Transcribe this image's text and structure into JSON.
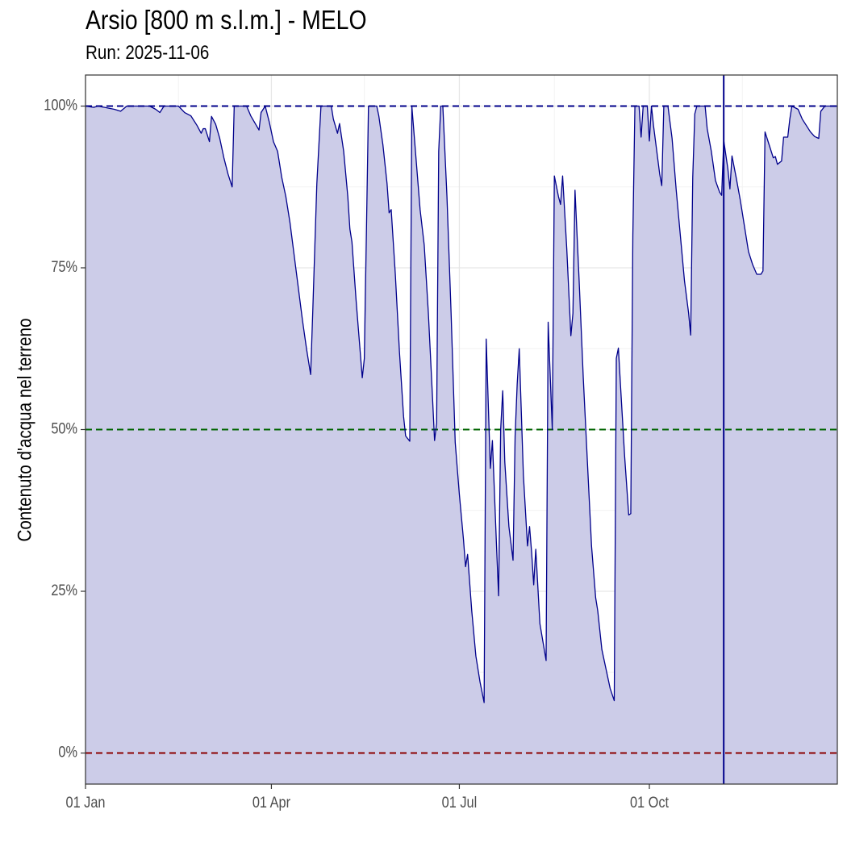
{
  "chart_data": {
    "type": "area",
    "title": "Arsio [800 m s.l.m.] - MELO",
    "subtitle": "Run: 2025-11-06",
    "xlabel": "",
    "ylabel": "Contenuto d'acqua nel terreno",
    "x_range": [
      "2025-01-01",
      "2025-12-31"
    ],
    "ylim": [
      -4.8,
      104.8
    ],
    "x_ticks": [
      {
        "date": "2025-01-01",
        "label": "01 Jan"
      },
      {
        "date": "2025-04-01",
        "label": "01 Apr"
      },
      {
        "date": "2025-07-01",
        "label": "01 Jul"
      },
      {
        "date": "2025-10-01",
        "label": "01 Oct"
      }
    ],
    "y_ticks": [
      {
        "value": 0,
        "label": "0%"
      },
      {
        "value": 25,
        "label": "25%"
      },
      {
        "value": 50,
        "label": "50%"
      },
      {
        "value": 75,
        "label": "75%"
      },
      {
        "value": 100,
        "label": "100%"
      }
    ],
    "grid": true,
    "reference_lines": [
      {
        "value": 100,
        "color": "#00008B",
        "style": "dashed"
      },
      {
        "value": 50,
        "color": "#006400",
        "style": "dashed"
      },
      {
        "value": 0,
        "color": "#8B0000",
        "style": "dashed"
      }
    ],
    "vertical_line": {
      "date": "2025-11-06",
      "color": "#00008B"
    },
    "colors": {
      "line": "#00008B",
      "fill": "#CCCCE8"
    },
    "series": [
      {
        "points": [
          [
            "2025-01-01",
            100
          ],
          [
            "2025-01-05",
            99.8
          ],
          [
            "2025-01-07",
            100
          ],
          [
            "2025-01-15",
            99.5
          ],
          [
            "2025-01-18",
            99.2
          ],
          [
            "2025-01-21",
            100
          ],
          [
            "2025-02-01",
            100
          ],
          [
            "2025-02-04",
            99.5
          ],
          [
            "2025-02-06",
            99
          ],
          [
            "2025-02-08",
            100
          ],
          [
            "2025-02-15",
            100
          ],
          [
            "2025-02-18",
            99
          ],
          [
            "2025-02-21",
            98.5
          ],
          [
            "2025-02-24",
            97
          ],
          [
            "2025-02-26",
            95.8
          ],
          [
            "2025-02-27",
            96.5
          ],
          [
            "2025-02-28",
            96.5
          ],
          [
            "2025-03-02",
            94.5
          ],
          [
            "2025-03-03",
            98.4
          ],
          [
            "2025-03-05",
            97.2
          ],
          [
            "2025-03-07",
            95
          ],
          [
            "2025-03-09",
            92
          ],
          [
            "2025-03-11",
            89.5
          ],
          [
            "2025-03-13",
            87.5
          ],
          [
            "2025-03-14",
            100
          ],
          [
            "2025-03-20",
            100
          ],
          [
            "2025-03-22",
            98.5
          ],
          [
            "2025-03-26",
            96.3
          ],
          [
            "2025-03-27",
            99
          ],
          [
            "2025-03-29",
            100
          ],
          [
            "2025-03-31",
            97.5
          ],
          [
            "2025-04-02",
            94.5
          ],
          [
            "2025-04-04",
            93
          ],
          [
            "2025-04-06",
            89
          ],
          [
            "2025-04-08",
            86
          ],
          [
            "2025-04-10",
            82
          ],
          [
            "2025-04-12",
            77
          ],
          [
            "2025-04-14",
            72
          ],
          [
            "2025-04-16",
            67
          ],
          [
            "2025-04-18",
            62.5
          ],
          [
            "2025-04-20",
            58.5
          ],
          [
            "2025-04-21",
            68
          ],
          [
            "2025-04-23",
            88
          ],
          [
            "2025-04-25",
            100
          ],
          [
            "2025-04-30",
            100
          ],
          [
            "2025-05-01",
            98
          ],
          [
            "2025-05-03",
            95.8
          ],
          [
            "2025-05-04",
            97.3
          ],
          [
            "2025-05-06",
            93
          ],
          [
            "2025-05-08",
            86
          ],
          [
            "2025-05-09",
            81
          ],
          [
            "2025-05-10",
            79
          ],
          [
            "2025-05-12",
            70
          ],
          [
            "2025-05-14",
            62
          ],
          [
            "2025-05-15",
            58
          ],
          [
            "2025-05-16",
            61
          ],
          [
            "2025-05-18",
            100
          ],
          [
            "2025-05-22",
            100
          ],
          [
            "2025-05-23",
            98.5
          ],
          [
            "2025-05-25",
            94
          ],
          [
            "2025-05-27",
            88
          ],
          [
            "2025-05-28",
            83.5
          ],
          [
            "2025-05-29",
            84
          ],
          [
            "2025-05-31",
            74
          ],
          [
            "2025-06-02",
            62
          ],
          [
            "2025-06-04",
            52
          ],
          [
            "2025-06-05",
            49
          ],
          [
            "2025-06-07",
            48.2
          ],
          [
            "2025-06-08",
            100
          ],
          [
            "2025-06-10",
            92
          ],
          [
            "2025-06-12",
            84
          ],
          [
            "2025-06-14",
            78.5
          ],
          [
            "2025-06-16",
            68
          ],
          [
            "2025-06-18",
            55
          ],
          [
            "2025-06-19",
            48.3
          ],
          [
            "2025-06-20",
            51
          ],
          [
            "2025-06-21",
            93
          ],
          [
            "2025-06-22",
            100
          ],
          [
            "2025-06-23",
            100
          ],
          [
            "2025-06-25",
            86
          ],
          [
            "2025-06-27",
            68
          ],
          [
            "2025-06-29",
            48
          ],
          [
            "2025-07-01",
            40
          ],
          [
            "2025-07-03",
            33
          ],
          [
            "2025-07-04",
            28.8
          ],
          [
            "2025-07-05",
            30.7
          ],
          [
            "2025-07-07",
            22
          ],
          [
            "2025-07-09",
            15
          ],
          [
            "2025-07-11",
            11
          ],
          [
            "2025-07-13",
            7.8
          ],
          [
            "2025-07-14",
            64
          ],
          [
            "2025-07-16",
            44
          ],
          [
            "2025-07-17",
            48.3
          ],
          [
            "2025-07-19",
            32
          ],
          [
            "2025-07-20",
            24.3
          ],
          [
            "2025-07-21",
            50
          ],
          [
            "2025-07-22",
            56
          ],
          [
            "2025-07-23",
            45
          ],
          [
            "2025-07-25",
            35
          ],
          [
            "2025-07-27",
            29.8
          ],
          [
            "2025-07-28",
            49
          ],
          [
            "2025-07-29",
            57
          ],
          [
            "2025-07-30",
            62.5
          ],
          [
            "2025-08-01",
            43
          ],
          [
            "2025-08-03",
            32
          ],
          [
            "2025-08-04",
            35
          ],
          [
            "2025-08-05",
            31
          ],
          [
            "2025-08-06",
            26
          ],
          [
            "2025-08-07",
            31.5
          ],
          [
            "2025-08-09",
            20
          ],
          [
            "2025-08-12",
            14.3
          ],
          [
            "2025-08-13",
            66.6
          ],
          [
            "2025-08-15",
            50
          ],
          [
            "2025-08-16",
            89.2
          ],
          [
            "2025-08-18",
            86
          ],
          [
            "2025-08-19",
            84.8
          ],
          [
            "2025-08-20",
            89.2
          ],
          [
            "2025-08-22",
            78
          ],
          [
            "2025-08-24",
            64.5
          ],
          [
            "2025-08-25",
            68
          ],
          [
            "2025-08-26",
            87
          ],
          [
            "2025-08-28",
            73
          ],
          [
            "2025-08-30",
            58
          ],
          [
            "2025-09-01",
            45
          ],
          [
            "2025-09-03",
            32
          ],
          [
            "2025-09-05",
            24
          ],
          [
            "2025-09-06",
            22
          ],
          [
            "2025-09-08",
            16
          ],
          [
            "2025-09-10",
            13
          ],
          [
            "2025-09-12",
            10
          ],
          [
            "2025-09-14",
            8.1
          ],
          [
            "2025-09-15",
            61
          ],
          [
            "2025-09-16",
            62.6
          ],
          [
            "2025-09-17",
            57
          ],
          [
            "2025-09-19",
            46
          ],
          [
            "2025-09-21",
            36.8
          ],
          [
            "2025-09-22",
            37
          ],
          [
            "2025-09-23",
            80
          ],
          [
            "2025-09-24",
            100
          ],
          [
            "2025-09-26",
            100
          ],
          [
            "2025-09-27",
            95.2
          ],
          [
            "2025-09-28",
            100
          ],
          [
            "2025-09-30",
            100
          ],
          [
            "2025-10-01",
            94.6
          ],
          [
            "2025-10-02",
            100
          ],
          [
            "2025-10-03",
            97
          ],
          [
            "2025-10-05",
            92
          ],
          [
            "2025-10-06",
            89.5
          ],
          [
            "2025-10-07",
            87.7
          ],
          [
            "2025-10-08",
            100
          ],
          [
            "2025-10-10",
            100
          ],
          [
            "2025-10-11",
            97.5
          ],
          [
            "2025-10-12",
            95
          ],
          [
            "2025-10-14",
            87
          ],
          [
            "2025-10-16",
            80
          ],
          [
            "2025-10-18",
            73
          ],
          [
            "2025-10-20",
            68
          ],
          [
            "2025-10-21",
            64.6
          ],
          [
            "2025-10-22",
            89
          ],
          [
            "2025-10-23",
            98.8
          ],
          [
            "2025-10-24",
            100
          ],
          [
            "2025-10-28",
            100
          ],
          [
            "2025-10-29",
            96.5
          ],
          [
            "2025-10-31",
            93
          ],
          [
            "2025-11-02",
            88.5
          ],
          [
            "2025-11-04",
            86.7
          ],
          [
            "2025-11-05",
            86.2
          ],
          [
            "2025-11-06",
            94.7
          ],
          [
            "2025-11-08",
            90.3
          ],
          [
            "2025-11-09",
            87.2
          ],
          [
            "2025-11-10",
            92.3
          ],
          [
            "2025-11-12",
            89
          ],
          [
            "2025-11-14",
            85.5
          ],
          [
            "2025-11-16",
            81.5
          ],
          [
            "2025-11-18",
            77.5
          ],
          [
            "2025-11-20",
            75.5
          ],
          [
            "2025-11-22",
            74
          ],
          [
            "2025-11-24",
            74
          ],
          [
            "2025-11-25",
            74.5
          ],
          [
            "2025-11-26",
            96
          ],
          [
            "2025-11-28",
            94
          ],
          [
            "2025-11-30",
            92
          ],
          [
            "2025-12-01",
            92.2
          ],
          [
            "2025-12-02",
            91
          ],
          [
            "2025-12-04",
            91.5
          ],
          [
            "2025-12-05",
            95.2
          ],
          [
            "2025-12-07",
            95.2
          ],
          [
            "2025-12-08",
            98
          ],
          [
            "2025-12-09",
            100
          ],
          [
            "2025-12-12",
            99.5
          ],
          [
            "2025-12-14",
            98
          ],
          [
            "2025-12-16",
            97
          ],
          [
            "2025-12-18",
            96
          ],
          [
            "2025-12-20",
            95.3
          ],
          [
            "2025-12-22",
            95
          ],
          [
            "2025-12-23",
            99.2
          ],
          [
            "2025-12-25",
            100
          ],
          [
            "2025-12-31",
            100
          ]
        ]
      }
    ]
  }
}
